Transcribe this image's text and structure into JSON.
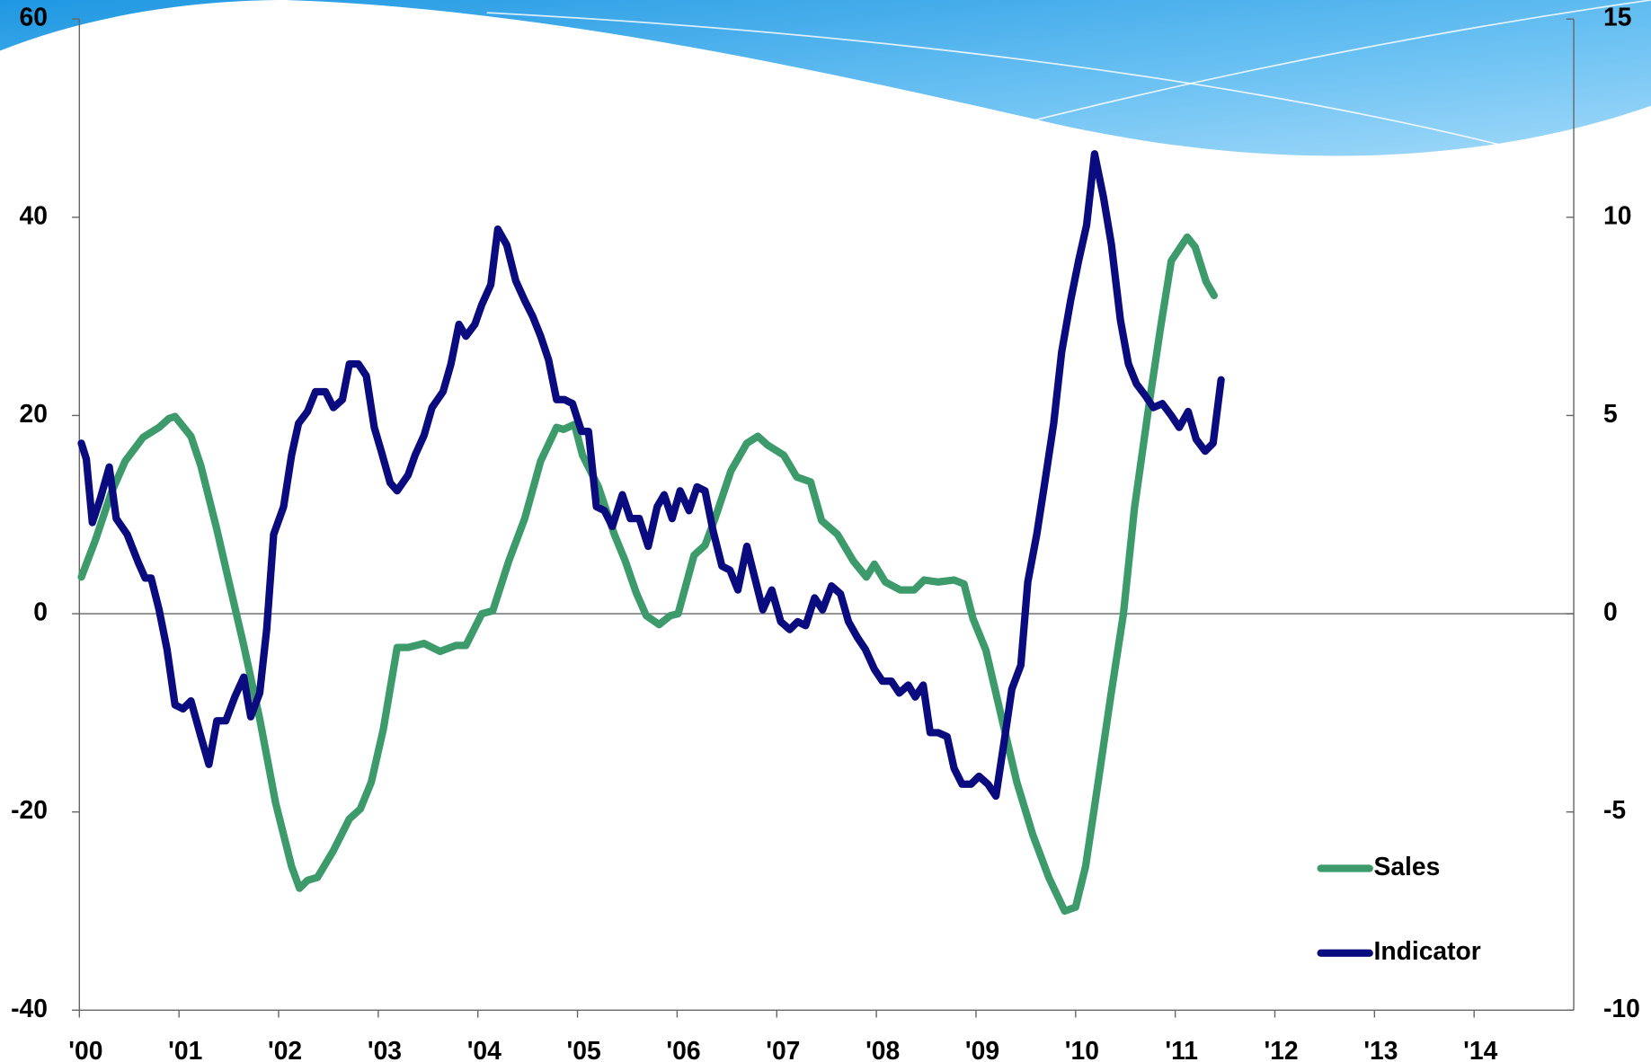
{
  "chart_data": {
    "type": "line",
    "xlim": [
      2000,
      2015
    ],
    "xticks": [
      {
        "value": 2000,
        "label": "'00"
      },
      {
        "value": 2001,
        "label": "'01"
      },
      {
        "value": 2002,
        "label": "'02"
      },
      {
        "value": 2003,
        "label": "'03"
      },
      {
        "value": 2004,
        "label": "'04"
      },
      {
        "value": 2005,
        "label": "'05"
      },
      {
        "value": 2006,
        "label": "'06"
      },
      {
        "value": 2007,
        "label": "'07"
      },
      {
        "value": 2008,
        "label": "'08"
      },
      {
        "value": 2009,
        "label": "'09"
      },
      {
        "value": 2010,
        "label": "'10"
      },
      {
        "value": 2011,
        "label": "'11"
      },
      {
        "value": 2012,
        "label": "'12"
      },
      {
        "value": 2013,
        "label": "'13"
      },
      {
        "value": 2014,
        "label": "'14"
      }
    ],
    "ylim": [
      -40,
      60
    ],
    "yticks": [
      -40,
      -20,
      0,
      20,
      40,
      60
    ],
    "y2lim": [
      -10,
      15
    ],
    "y2ticks": [
      -10,
      -5,
      0,
      5,
      10,
      15
    ],
    "legend": "lower right",
    "series": [
      {
        "name": "Sales",
        "color": "#3d9b6b",
        "axis": "y",
        "x": [
          2000.02,
          2000.16,
          2000.32,
          2000.46,
          2000.64,
          2000.8,
          2000.9,
          2000.96,
          2001.12,
          2001.22,
          2001.38,
          2001.49,
          2001.65,
          2001.81,
          2001.97,
          2002.13,
          2002.21,
          2002.29,
          2002.39,
          2002.55,
          2002.71,
          2002.82,
          2002.93,
          2003.05,
          2003.19,
          2003.3,
          2003.46,
          2003.62,
          2003.78,
          2003.88,
          2004.04,
          2004.15,
          2004.31,
          2004.47,
          2004.63,
          2004.79,
          2004.86,
          2004.97,
          2005.05,
          2005.21,
          2005.37,
          2005.48,
          2005.59,
          2005.69,
          2005.82,
          2005.93,
          2006.01,
          2006.17,
          2006.28,
          2006.38,
          2006.54,
          2006.7,
          2006.81,
          2006.91,
          2007.07,
          2007.2,
          2007.34,
          2007.45,
          2007.61,
          2007.77,
          2007.9,
          2007.98,
          2008.09,
          2008.24,
          2008.38,
          2008.48,
          2008.62,
          2008.78,
          2008.88,
          2008.97,
          2009.1,
          2009.26,
          2009.41,
          2009.57,
          2009.73,
          2009.89,
          2010.0,
          2010.1,
          2010.21,
          2010.35,
          2010.48,
          2010.59,
          2010.74,
          2010.85,
          2010.96,
          2011.12,
          2011.2,
          2011.31,
          2011.39
        ],
        "values": [
          3.7,
          7.4,
          12.2,
          15.4,
          17.8,
          18.8,
          19.7,
          19.9,
          17.9,
          14.9,
          8.5,
          3.7,
          -3.2,
          -10.6,
          -19.1,
          -25.5,
          -27.7,
          -26.9,
          -26.6,
          -23.9,
          -20.7,
          -19.7,
          -17.0,
          -11.7,
          -3.4,
          -3.4,
          -3.0,
          -3.8,
          -3.2,
          -3.2,
          0,
          0.3,
          5.3,
          9.6,
          15.4,
          18.8,
          18.6,
          19.1,
          16.0,
          12.8,
          8.0,
          5.3,
          2.1,
          -0.2,
          -1.1,
          -0.2,
          0,
          5.9,
          6.9,
          9.6,
          14.4,
          17.2,
          17.9,
          17.0,
          16.0,
          13.8,
          13.3,
          9.4,
          8.0,
          5.3,
          3.7,
          5.0,
          3.2,
          2.4,
          2.4,
          3.4,
          3.2,
          3.4,
          3.0,
          -0.5,
          -3.7,
          -10.6,
          -17.0,
          -22.3,
          -26.6,
          -30,
          -29.6,
          -25.5,
          -18.1,
          -8.5,
          0,
          10.6,
          21.3,
          28.7,
          35.6,
          38.0,
          37.0,
          33.5,
          32.1
        ]
      },
      {
        "name": "Indicator",
        "color": "#0b0b80",
        "axis": "y2",
        "x": [
          2000.02,
          2000.07,
          2000.13,
          2000.21,
          2000.3,
          2000.37,
          2000.48,
          2000.59,
          2000.66,
          2000.72,
          2000.8,
          2000.88,
          2000.96,
          2001.04,
          2001.12,
          2001.22,
          2001.3,
          2001.38,
          2001.47,
          2001.56,
          2001.65,
          2001.72,
          2001.81,
          2001.88,
          2001.95,
          2002.05,
          2002.13,
          2002.2,
          2002.29,
          2002.37,
          2002.47,
          2002.55,
          2002.64,
          2002.71,
          2002.8,
          2002.88,
          2002.96,
          2003.03,
          2003.12,
          2003.19,
          2003.3,
          2003.37,
          2003.46,
          2003.54,
          2003.65,
          2003.73,
          2003.81,
          2003.88,
          2003.97,
          2004.04,
          2004.13,
          2004.2,
          2004.29,
          2004.38,
          2004.47,
          2004.55,
          2004.63,
          2004.71,
          2004.79,
          2004.87,
          2004.95,
          2005.04,
          2005.11,
          2005.19,
          2005.27,
          2005.35,
          2005.45,
          2005.53,
          2005.62,
          2005.71,
          2005.8,
          2005.87,
          2005.95,
          2006.03,
          2006.12,
          2006.2,
          2006.28,
          2006.36,
          2006.45,
          2006.53,
          2006.61,
          2006.7,
          2006.78,
          2006.86,
          2006.95,
          2007.04,
          2007.13,
          2007.21,
          2007.29,
          2007.38,
          2007.46,
          2007.55,
          2007.64,
          2007.72,
          2007.81,
          2007.89,
          2007.98,
          2008.06,
          2008.15,
          2008.23,
          2008.32,
          2008.39,
          2008.47,
          2008.54,
          2008.62,
          2008.71,
          2008.78,
          2008.86,
          2008.95,
          2009.03,
          2009.12,
          2009.2,
          2009.29,
          2009.36,
          2009.45,
          2009.52,
          2009.61,
          2009.69,
          2009.78,
          2009.86,
          2009.95,
          2010.03,
          2010.11,
          2010.19,
          2010.28,
          2010.36,
          2010.45,
          2010.53,
          2010.61,
          2010.7,
          2010.78,
          2010.87,
          2010.96,
          2011.04,
          2011.13,
          2011.21,
          2011.3,
          2011.38,
          2011.46
        ],
        "values": [
          4.3,
          3.9,
          2.3,
          2.9,
          3.7,
          2.4,
          2.0,
          1.3,
          0.9,
          0.9,
          0.1,
          -0.9,
          -2.3,
          -2.4,
          -2.2,
          -3.1,
          -3.8,
          -2.7,
          -2.7,
          -2.1,
          -1.6,
          -2.6,
          -2.0,
          -0.4,
          2.0,
          2.7,
          4.0,
          4.8,
          5.1,
          5.6,
          5.6,
          5.2,
          5.4,
          6.3,
          6.3,
          6.0,
          4.7,
          4.1,
          3.3,
          3.1,
          3.5,
          4.0,
          4.5,
          5.2,
          5.6,
          6.3,
          7.3,
          7.0,
          7.3,
          7.8,
          8.3,
          9.7,
          9.3,
          8.4,
          7.9,
          7.5,
          7.0,
          6.4,
          5.4,
          5.4,
          5.3,
          4.6,
          4.6,
          2.7,
          2.6,
          2.2,
          3.0,
          2.4,
          2.4,
          1.7,
          2.7,
          3.0,
          2.4,
          3.1,
          2.6,
          3.2,
          3.1,
          2.1,
          1.2,
          1.1,
          0.6,
          1.7,
          0.9,
          0.1,
          0.6,
          -0.2,
          -0.4,
          -0.2,
          -0.3,
          0.4,
          0.1,
          0.7,
          0.5,
          -0.2,
          -0.6,
          -0.9,
          -1.4,
          -1.7,
          -1.7,
          -2.0,
          -1.8,
          -2.1,
          -1.8,
          -3.0,
          -3.0,
          -3.1,
          -3.9,
          -4.3,
          -4.3,
          -4.1,
          -4.3,
          -4.6,
          -3.1,
          -1.9,
          -1.3,
          0.8,
          2.0,
          3.3,
          4.8,
          6.6,
          7.9,
          8.9,
          9.8,
          11.6,
          10.5,
          9.3,
          7.4,
          6.3,
          5.8,
          5.5,
          5.2,
          5.3,
          5.0,
          4.7,
          5.1,
          4.4,
          4.1,
          4.3,
          5.9
        ]
      }
    ]
  }
}
